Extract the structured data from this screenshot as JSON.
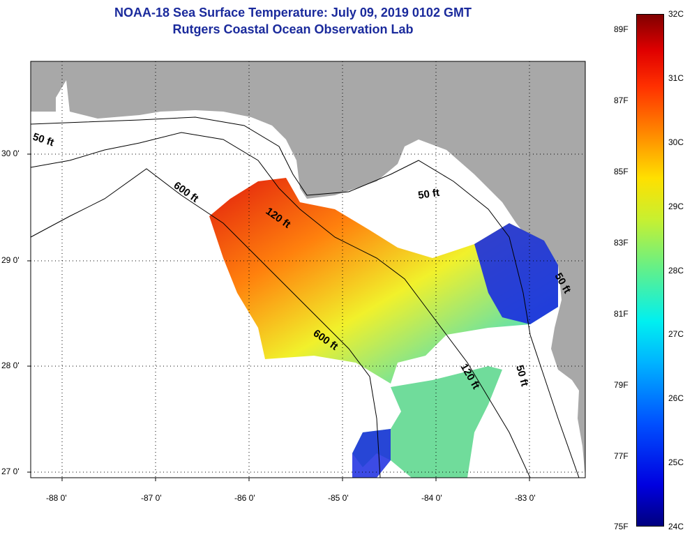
{
  "title_line1": "NOAA-18 Sea Surface Temperature:  July 09, 2019 0102 GMT",
  "title_line2": "Rutgers Coastal Ocean Observation Lab",
  "map": {
    "land_color": "#a8a8a8",
    "water_color": "#ffffff",
    "lon_range": [
      -88.35,
      -82.45
    ],
    "lat_range": [
      26.97,
      30.9
    ],
    "lon_ticks": [
      "-88 0'",
      "-87 0'",
      "-86 0'",
      "-85 0'",
      "-84 0'",
      "-83 0'"
    ],
    "lat_ticks": [
      "30 0'",
      "29 0'",
      "28 0'",
      "27 0'"
    ],
    "contour_labels": [
      "50 ft",
      "600 ft",
      "120 ft",
      "50 ft",
      "600 ft",
      "120 ft",
      "50 ft",
      "50 ft"
    ]
  },
  "colorbar": {
    "celsius_labels": [
      "32C",
      "31C",
      "30C",
      "29C",
      "28C",
      "27C",
      "26C",
      "25C",
      "24C"
    ],
    "fahrenheit_labels": [
      "89F",
      "87F",
      "85F",
      "83F",
      "81F",
      "79F",
      "77F",
      "75F"
    ],
    "range_c": [
      24,
      32
    ]
  }
}
